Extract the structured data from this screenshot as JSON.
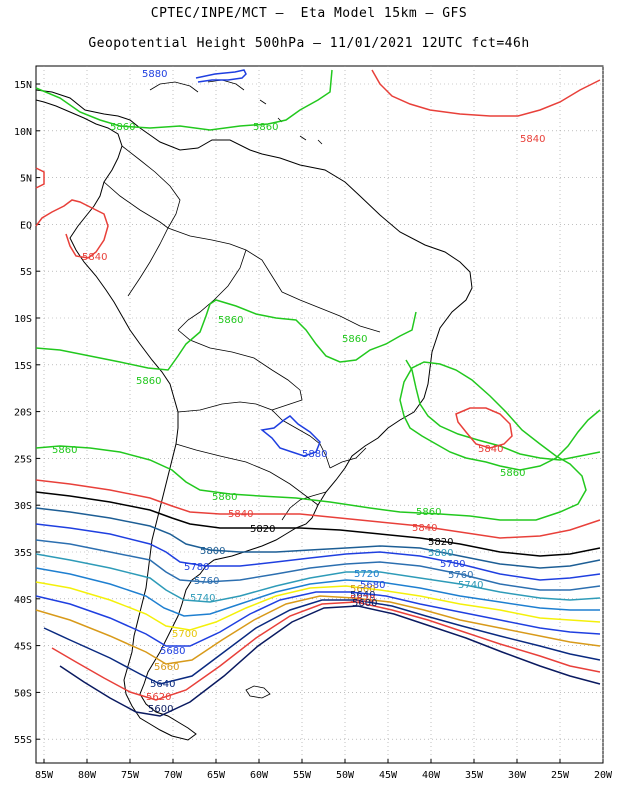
{
  "header": {
    "line1": "CPTEC/INPE/MCT –  Eta Model 15km – GFS",
    "line2": "Geopotential Height 500hPa – 11/01/2021 12UTC fct=46h"
  },
  "colors": {
    "c5880": "#1f3fe0",
    "c5860": "#22c81e",
    "c5840": "#e8403a",
    "c5820": "#000000",
    "c5800": "#1d5e95",
    "c5780": "#1f3fe0",
    "c5760": "#2c6fb0",
    "c5740": "#2e9bb8",
    "c5720": "#1e7fd0",
    "c5700": "#f4f00a",
    "c5680": "#1f3fe0",
    "c5660": "#d89a1a",
    "c5640": "#0a2a80",
    "c5620": "#e8403a",
    "c5600": "#0a1a60",
    "land": "#000000",
    "grid": "#9a9a9a"
  },
  "map": {
    "lat_labels": [
      "15N",
      "10N",
      "5N",
      "EQ",
      "5S",
      "10S",
      "15S",
      "20S",
      "25S",
      "30S",
      "35S",
      "40S",
      "45S",
      "50S",
      "55S"
    ],
    "lon_labels": [
      "85W",
      "80W",
      "75W",
      "70W",
      "65W",
      "60W",
      "55W",
      "50W",
      "45W",
      "40W",
      "35W",
      "30W",
      "25W",
      "20W"
    ]
  },
  "contour_labels": {
    "l5860_a": "5860",
    "l5860_b": "5860",
    "l5860_c": "5860",
    "l5860_d": "5860",
    "l5860_e": "5860",
    "l5860_f": "5860",
    "l5860_g": "5860",
    "l5860_h": "5860",
    "l5860_i": "5860",
    "l5860_j": "5860",
    "l5880_a": "5880",
    "l5880_b": "5880",
    "l5840_a": "5840",
    "l5840_b": "5840",
    "l5840_c": "5840",
    "l5840_d": "5840",
    "l5840_e": "5840",
    "l5840_f": "5840",
    "l5820_a": "5820",
    "l5820_b": "5820",
    "l5800_a": "5800",
    "l5800_b": "5800",
    "l5780_a": "5780",
    "l5780_b": "5780",
    "l5760_a": "5760",
    "l5760_b": "5760",
    "l5740_a": "5740",
    "l5740_b": "5740",
    "l5720_a": "5720",
    "l5700_a": "5700",
    "l5680_a": "5680",
    "l5680_b": "5680",
    "l5660_a": "5660",
    "l5660_b": "5660",
    "l5640_a": "5640",
    "l5640_b": "5640",
    "l5620_a": "5620",
    "l5620_b": "5620",
    "l5600_a": "5600",
    "l5600_b": "5600"
  }
}
